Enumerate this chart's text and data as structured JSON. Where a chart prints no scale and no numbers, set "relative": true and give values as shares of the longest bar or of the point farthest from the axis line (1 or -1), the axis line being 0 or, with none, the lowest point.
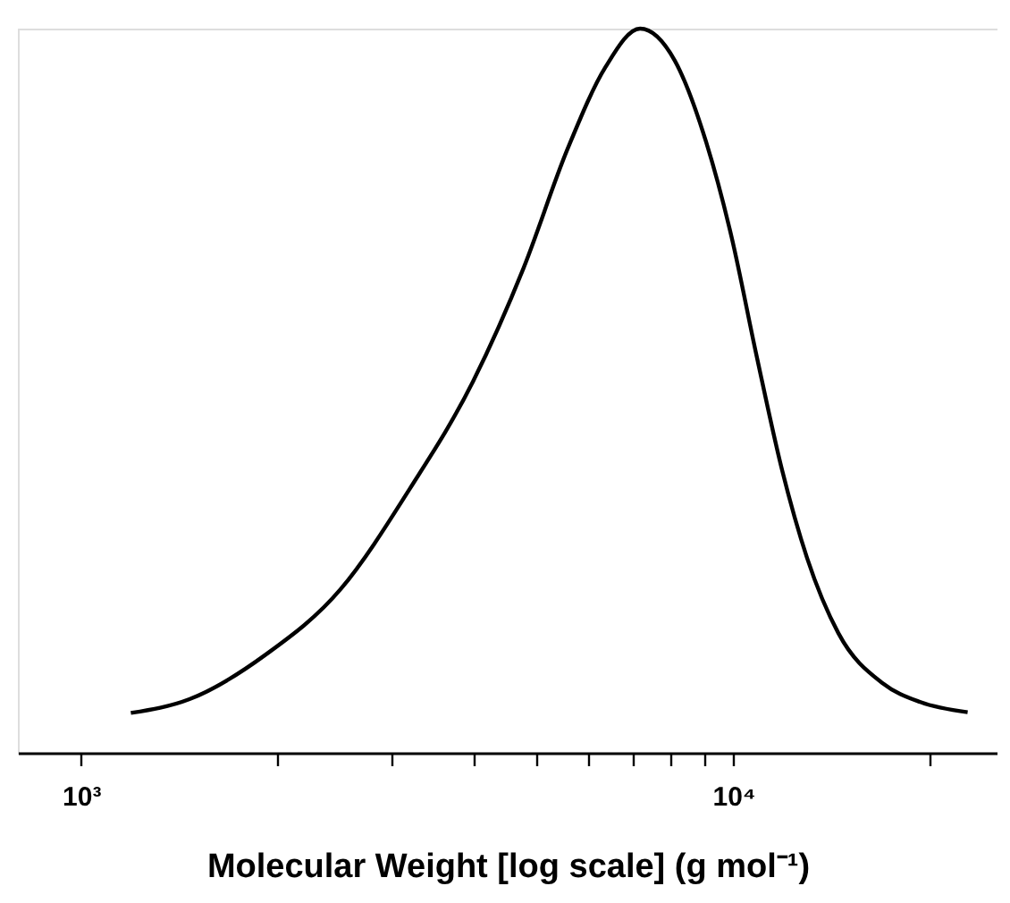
{
  "chart_data": {
    "type": "line",
    "relative": true,
    "log": "x",
    "xlabel": "Molecular Weight [log scale] (g mol⁻¹)",
    "xlim": [
      800,
      25400
    ],
    "xticks": [
      {
        "value": 1000,
        "label": "10³"
      },
      {
        "value": 2000,
        "label": null
      },
      {
        "value": 3000,
        "label": null
      },
      {
        "value": 4000,
        "label": null
      },
      {
        "value": 5000,
        "label": null
      },
      {
        "value": 6000,
        "label": null
      },
      {
        "value": 7000,
        "label": null
      },
      {
        "value": 8000,
        "label": null
      },
      {
        "value": 9000,
        "label": null
      },
      {
        "value": 10000,
        "label": "10⁴"
      },
      {
        "value": 20000,
        "label": null
      }
    ],
    "x": [
      1192,
      1466,
      1915,
      2500,
      3193,
      3990,
      4766,
      5570,
      6368,
      7194,
      8128,
      9085,
      9931,
      10860,
      11870,
      12970,
      14490,
      16940,
      19350,
      22860
    ],
    "series": [
      {
        "color": "#000000",
        "values": [
          0.055,
          0.074,
          0.135,
          0.226,
          0.365,
          0.513,
          0.669,
          0.834,
          0.947,
          1,
          0.956,
          0.843,
          0.713,
          0.547,
          0.391,
          0.269,
          0.165,
          0.096,
          0.07,
          0.056
        ]
      }
    ],
    "marker": "none",
    "line_style": "solid",
    "grid": false
  }
}
